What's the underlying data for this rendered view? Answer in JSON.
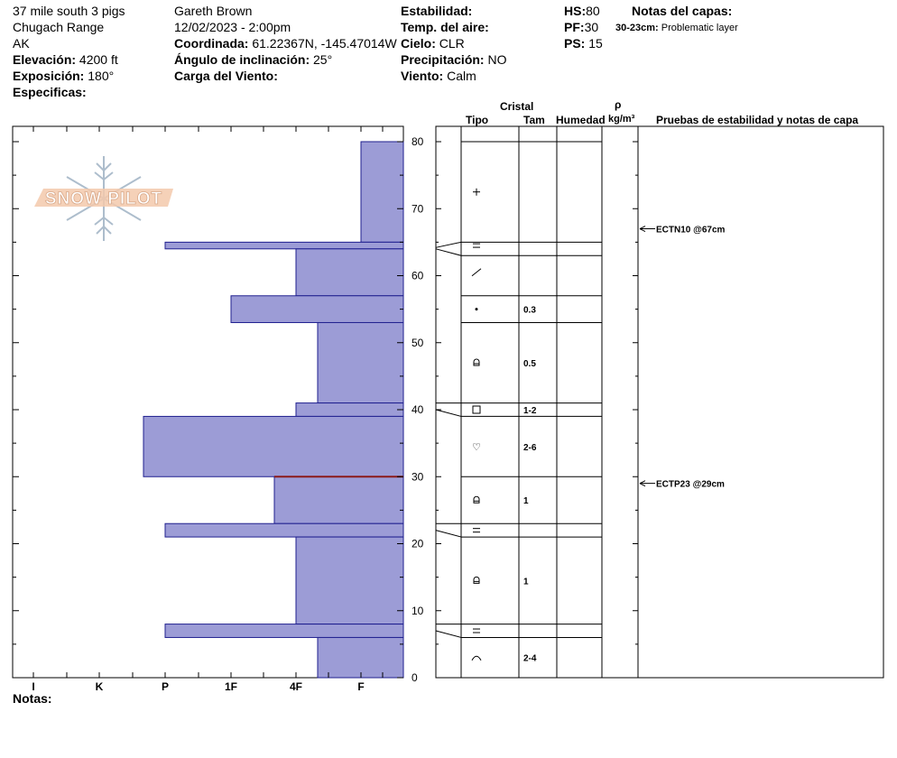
{
  "header": {
    "location": "37 mile south 3 pigs",
    "range": "Chugach Range",
    "state": "AK",
    "elevation_label": "Elevación:",
    "elevation_value": "4200 ft",
    "aspect_label": "Exposición:",
    "aspect_value": "180°",
    "specifics_label": "Especificas:",
    "observer": "Gareth Brown",
    "datetime": "12/02/2023 - 2:00pm",
    "coord_label": "Coordinada:",
    "coord_value": "61.22367N, -145.47014W",
    "slope_label": "Ángulo de inclinación:",
    "slope_value": "25°",
    "wind_load_label": "Carga del Viento:",
    "stability_label": "Estabilidad:",
    "air_temp_label": "Temp. del aire:",
    "sky_label": "Cielo:",
    "sky_value": "CLR",
    "precip_label": "Precipitación:",
    "precip_value": "NO",
    "wind_label": "Viento:",
    "wind_value": "Calm",
    "hs_label": "HS:",
    "hs_value": "80",
    "pf_label": "PF:",
    "pf_value": "30",
    "ps_label": "PS:",
    "ps_value": "15",
    "layer_notes_label": "Notas del capas:",
    "layer_note_depth": "30-23cm:",
    "layer_note_text": "Problematic layer"
  },
  "logo_text": "SNOWPILOT",
  "columns": {
    "cristal": "Cristal",
    "tipo": "Tipo",
    "tam": "Tam",
    "humedad": "Humedad",
    "rho": "ρ",
    "density_unit": "kg/m³",
    "tests": "Pruebas de estabilidad y notas de capa"
  },
  "notes_label": "Notas:",
  "chart_data": {
    "type": "bar",
    "ylim": [
      0,
      80
    ],
    "y_ticks": [
      "0",
      "10",
      "20",
      "30",
      "40",
      "50",
      "60",
      "70",
      "80"
    ],
    "hardness_scale": [
      "I",
      "K",
      "P",
      "1F",
      "4F",
      "F"
    ],
    "hardness_layers": [
      {
        "bottom": 65,
        "top": 80,
        "hardness": "F"
      },
      {
        "bottom": 64,
        "top": 65,
        "hardness": "P"
      },
      {
        "bottom": 57,
        "top": 64,
        "hardness": "4F"
      },
      {
        "bottom": 53,
        "top": 57,
        "hardness": "1F"
      },
      {
        "bottom": 41,
        "top": 53,
        "hardness": "4F-"
      },
      {
        "bottom": 39,
        "top": 41,
        "hardness": "4F"
      },
      {
        "bottom": 30,
        "top": 39,
        "hardness": "P+"
      },
      {
        "bottom": 23,
        "top": 30,
        "hardness": "4F+"
      },
      {
        "bottom": 21,
        "top": 23,
        "hardness": "P"
      },
      {
        "bottom": 8,
        "top": 21,
        "hardness": "4F"
      },
      {
        "bottom": 6,
        "top": 8,
        "hardness": "P"
      },
      {
        "bottom": 0,
        "top": 6,
        "hardness": "4F-"
      }
    ],
    "problem_layer_depth": 30,
    "crystal_layers": [
      {
        "mid": 72.5,
        "type": "+",
        "size": ""
      },
      {
        "mid": 64.5,
        "type": "=",
        "size": ""
      },
      {
        "mid": 60.5,
        "type": "/",
        "size": ""
      },
      {
        "mid": 55,
        "type": "•",
        "size": "0.3"
      },
      {
        "mid": 47,
        "type": "rounded",
        "size": "0.5"
      },
      {
        "mid": 40,
        "type": "□",
        "size": "1-2"
      },
      {
        "mid": 34.5,
        "type": "♡",
        "size": "2-6"
      },
      {
        "mid": 26.5,
        "type": "rounded",
        "size": "1"
      },
      {
        "mid": 22,
        "type": "=",
        "size": ""
      },
      {
        "mid": 14.5,
        "type": "rounded",
        "size": "1"
      },
      {
        "mid": 7,
        "type": "=",
        "size": ""
      },
      {
        "mid": 3,
        "type": "^",
        "size": "2-4"
      }
    ],
    "tests": [
      {
        "depth": 67,
        "label": "ECTN10 @67cm"
      },
      {
        "depth": 29,
        "label": "ECTP23 @29cm"
      }
    ]
  }
}
